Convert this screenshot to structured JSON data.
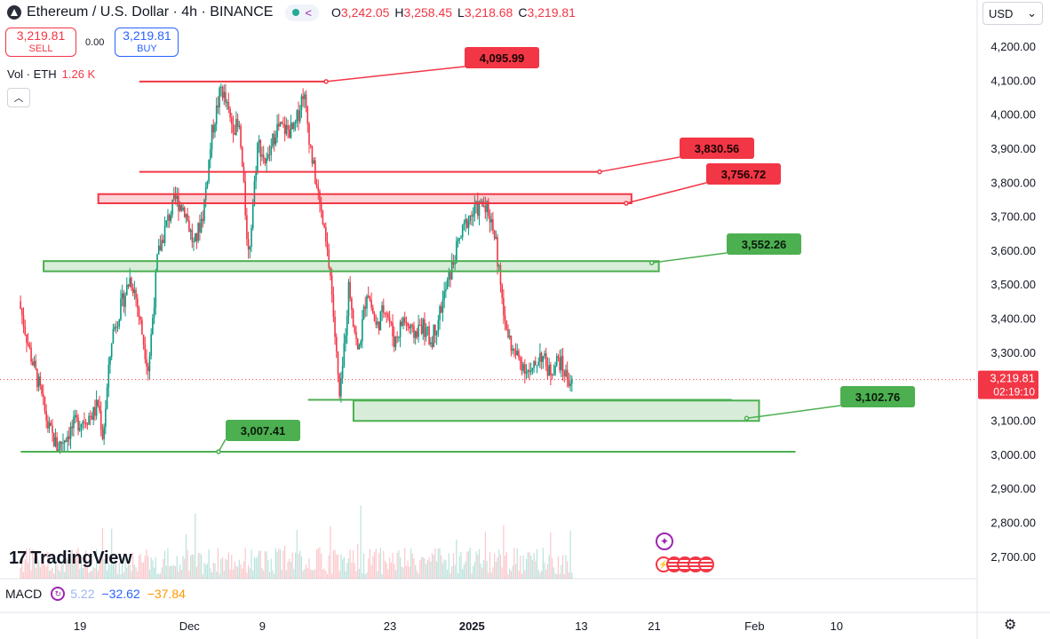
{
  "header": {
    "symbol": "Ethereum / U.S. Dollar · 4h · BINANCE",
    "ohlc": [
      {
        "k": "O",
        "v": "3,242.05"
      },
      {
        "k": "H",
        "v": "3,258.45"
      },
      {
        "k": "L",
        "v": "3,218.68"
      },
      {
        "k": "C",
        "v": "3,219.81"
      }
    ]
  },
  "trade": {
    "sell_price": "3,219.81",
    "sell_label": "SELL",
    "spread": "0.00",
    "buy_price": "3,219.81",
    "buy_label": "BUY"
  },
  "volume": {
    "label": "Vol · ETH",
    "value": "1.26 K"
  },
  "currency": "USD",
  "brand": "TradingView",
  "macd": {
    "label": "MACD",
    "v1": "5.22",
    "v2": "−32.62",
    "v3": "−37.84"
  },
  "price_marker": {
    "price": "3,219.81",
    "countdown": "02:19:10"
  },
  "colors": {
    "up": "#089981",
    "down": "#f23645",
    "green_zone": "#4caf50",
    "red_zone": "#f23645"
  },
  "chart_data": {
    "type": "candlestick",
    "ylim": [
      2650,
      4250
    ],
    "y_ticks": [
      "4,200.00",
      "4,100.00",
      "4,000.00",
      "3,900.00",
      "3,800.00",
      "3,700.00",
      "3,600.00",
      "3,500.00",
      "3,400.00",
      "3,300.00",
      "3,200.00",
      "3,100.00",
      "3,000.00",
      "2,900.00",
      "2,800.00",
      "2,700.00"
    ],
    "y_tick_values": [
      4200,
      4100,
      4000,
      3900,
      3800,
      3700,
      3600,
      3500,
      3400,
      3300,
      3200,
      3100,
      3000,
      2900,
      2800,
      2700
    ],
    "x_ticks": [
      {
        "label": "19",
        "t": 0.5
      },
      {
        "label": "Dec",
        "t": 12.5
      },
      {
        "label": "9",
        "t": 20.5
      },
      {
        "label": "23",
        "t": 34.5
      },
      {
        "label": "2025",
        "t": 43.5
      },
      {
        "label": "13",
        "t": 55.5
      },
      {
        "label": "21",
        "t": 63.5
      },
      {
        "label": "Feb",
        "t": 74.5
      },
      {
        "label": "10",
        "t": 83.5
      }
    ],
    "x_unit": "days since Nov 18, 2024",
    "path_days": [
      -6.2,
      -5,
      -4,
      -3,
      -2,
      0,
      2,
      2.5,
      3,
      4,
      6,
      6.5,
      8,
      9,
      10,
      11,
      12,
      13,
      14,
      15,
      16,
      17,
      18,
      19,
      20,
      21,
      22,
      24,
      25,
      26,
      27,
      28,
      29,
      30,
      31,
      32,
      33,
      34,
      35,
      36,
      37,
      38,
      39,
      40,
      41,
      42,
      43,
      44,
      45,
      46,
      47,
      48,
      49,
      50,
      51,
      52,
      53,
      54,
      54.5
    ],
    "path_prices": [
      3450,
      3300,
      3200,
      3080,
      3020,
      3090,
      3120,
      3150,
      3050,
      3350,
      3520,
      3480,
      3250,
      3580,
      3680,
      3750,
      3720,
      3610,
      3710,
      3950,
      4080,
      3980,
      3950,
      3580,
      3920,
      3850,
      3960,
      3950,
      4070,
      3860,
      3700,
      3520,
      3150,
      3500,
      3290,
      3490,
      3370,
      3440,
      3330,
      3400,
      3350,
      3380,
      3330,
      3420,
      3520,
      3620,
      3690,
      3720,
      3740,
      3650,
      3400,
      3300,
      3270,
      3230,
      3300,
      3240,
      3280,
      3220,
      3219.81
    ],
    "volume_note": "volume histogram at bottom",
    "annotations": [
      {
        "type": "hline",
        "price": 4095.99,
        "t1": 7,
        "t2": 27.5,
        "color": "red",
        "label": "4,095.99"
      },
      {
        "type": "hline",
        "price": 3830.56,
        "t1": 7,
        "t2": 57.5,
        "color": "red",
        "label": "3,830.56"
      },
      {
        "type": "zone",
        "p1": 3765,
        "p2": 3738,
        "t1": 2.5,
        "t2": 61,
        "color": "red",
        "label": "3,756.72"
      },
      {
        "type": "zone",
        "p1": 3568,
        "p2": 3538,
        "t1": -3.5,
        "t2": 64,
        "color": "green",
        "label": "3,552.26"
      },
      {
        "type": "zone",
        "p1": 3158,
        "p2": 3098,
        "t1": 30.5,
        "t2": 75,
        "color": "green",
        "label": "3,102.76"
      },
      {
        "type": "hline",
        "price": 3160,
        "t1": 25.5,
        "t2": 72,
        "color": "green",
        "label": ""
      },
      {
        "type": "hline",
        "price": 3007.41,
        "t1": -6,
        "t2": 79,
        "color": "green",
        "label": "3,007.41"
      }
    ]
  }
}
